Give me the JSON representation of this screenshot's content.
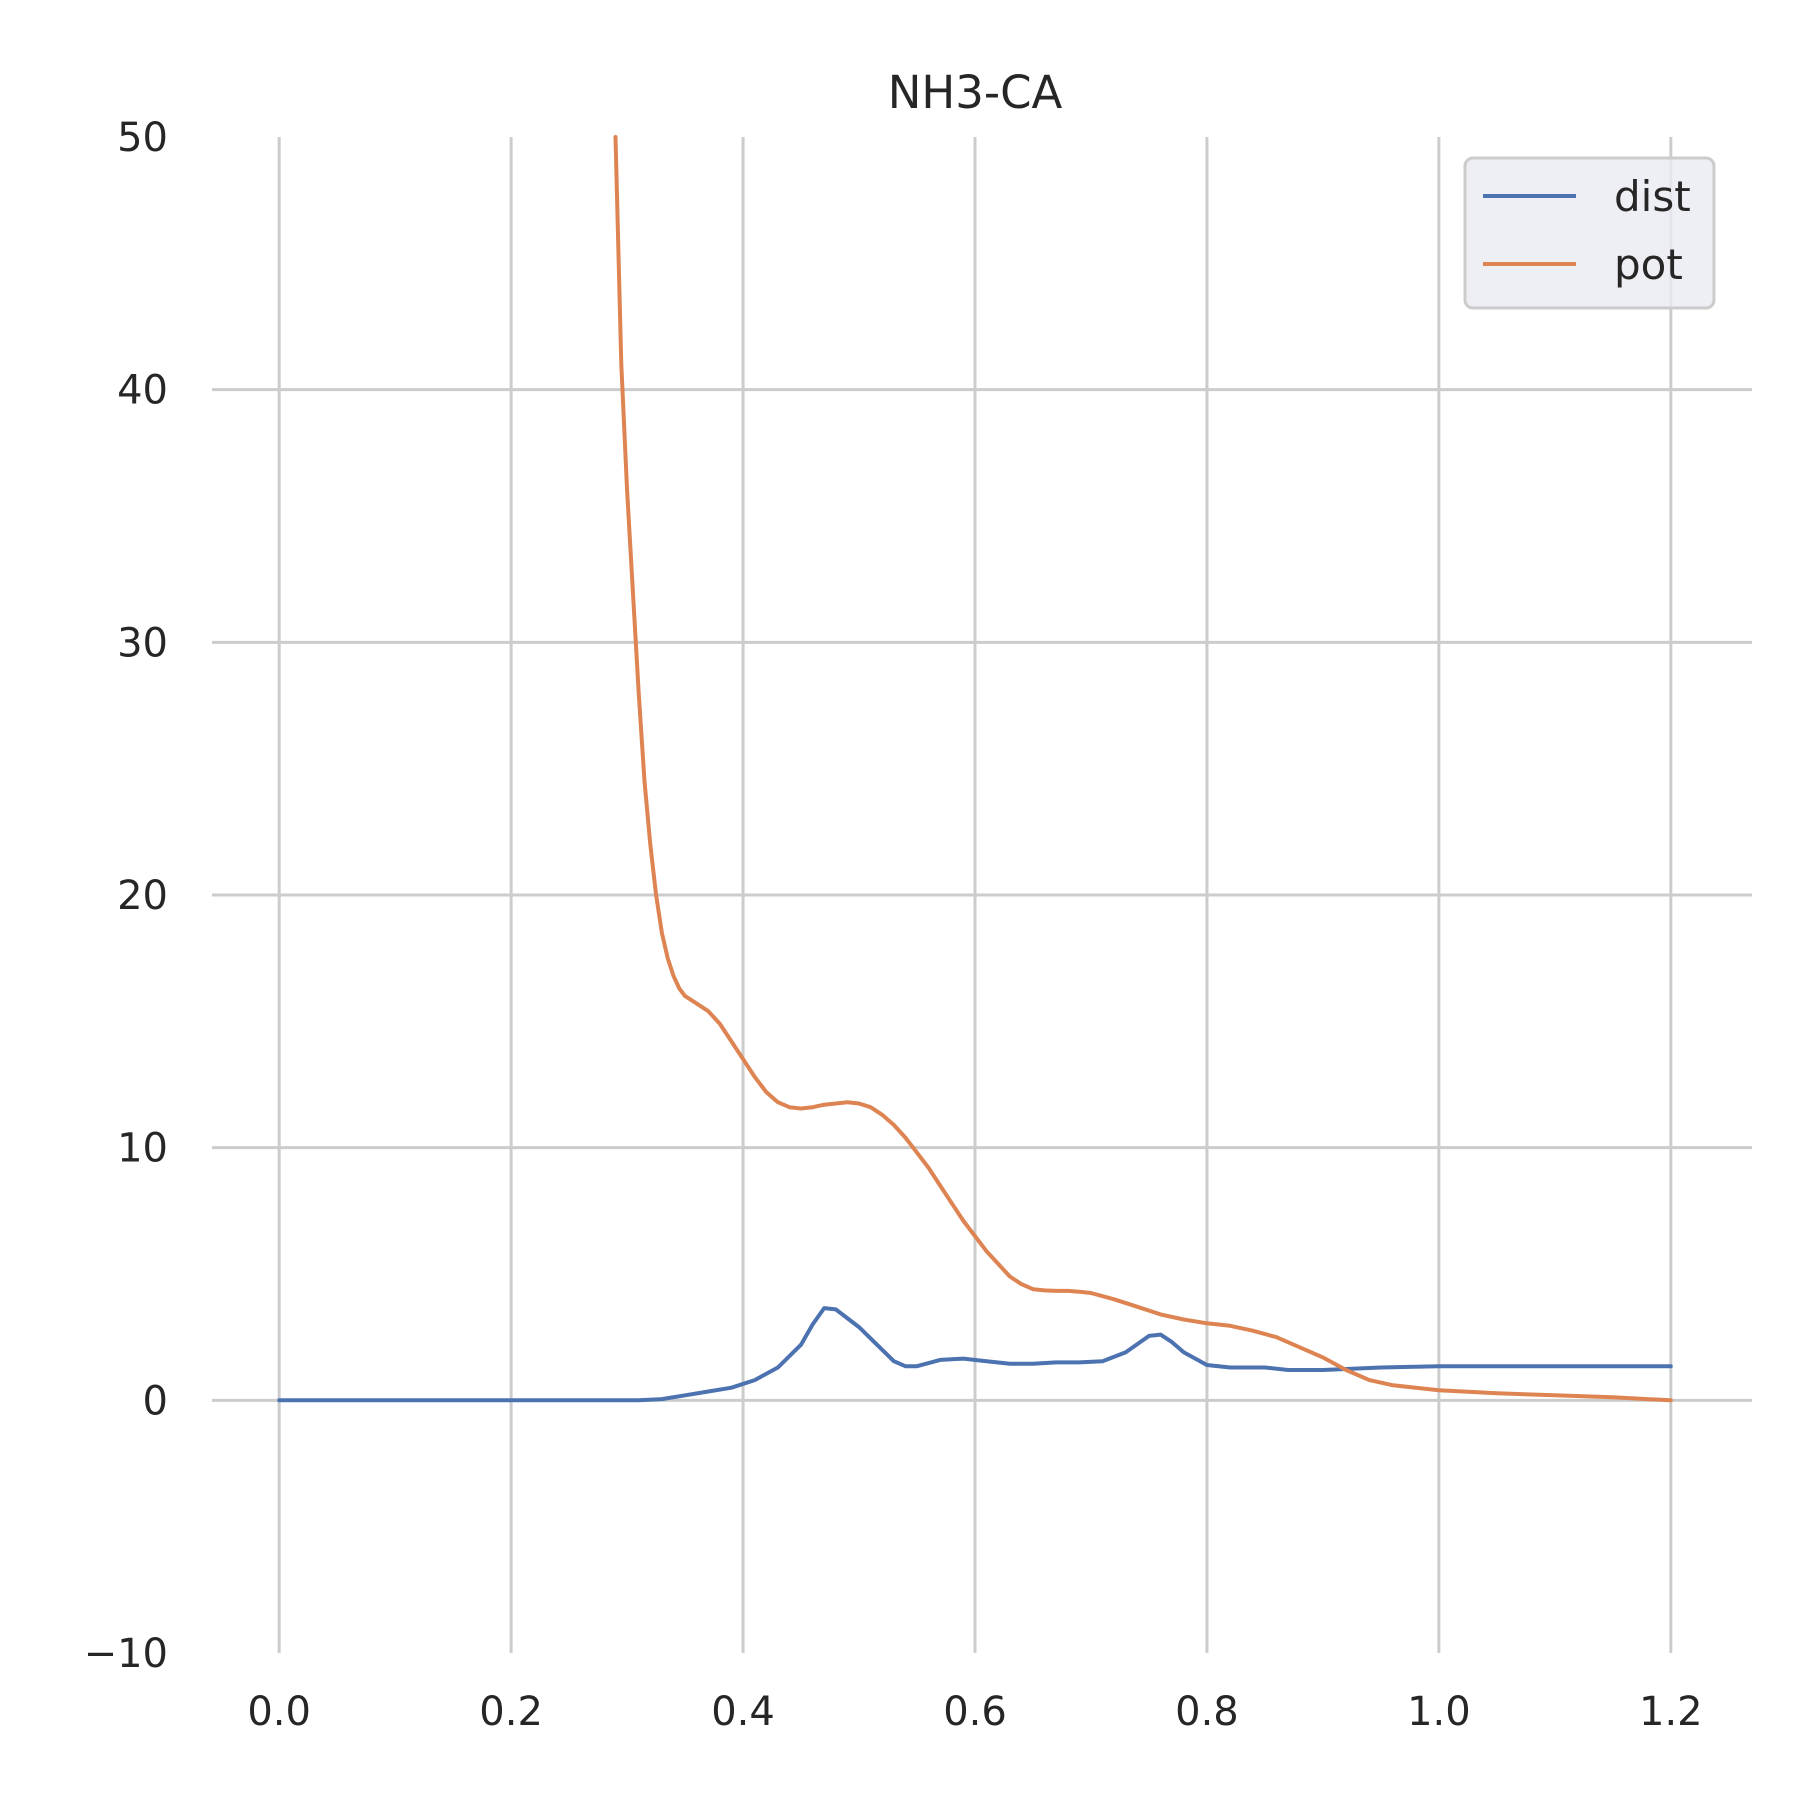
{
  "chart_data": {
    "type": "line",
    "title": "NH3-CA",
    "xlabel": "",
    "ylabel": "",
    "xlim": [
      -0.07,
      1.27
    ],
    "ylim": [
      -10,
      50
    ],
    "grid": true,
    "legend": "top-right",
    "xticks": [
      {
        "value": 0.0,
        "label": "0.0"
      },
      {
        "value": 0.2,
        "label": "0.2"
      },
      {
        "value": 0.4,
        "label": "0.4"
      },
      {
        "value": 0.6,
        "label": "0.6"
      },
      {
        "value": 0.8,
        "label": "0.8"
      },
      {
        "value": 1.0,
        "label": "1.0"
      },
      {
        "value": 1.2,
        "label": "1.2"
      }
    ],
    "yticks": [
      {
        "value": -10,
        "label": "−10"
      },
      {
        "value": 0,
        "label": "0"
      },
      {
        "value": 10,
        "label": "10"
      },
      {
        "value": 20,
        "label": "20"
      },
      {
        "value": 30,
        "label": "30"
      },
      {
        "value": 40,
        "label": "40"
      },
      {
        "value": 50,
        "label": "50"
      }
    ],
    "series": [
      {
        "name": "dist",
        "color": "#4c72b0",
        "x": [
          0.0,
          0.1,
          0.2,
          0.3,
          0.31,
          0.33,
          0.35,
          0.37,
          0.39,
          0.41,
          0.43,
          0.45,
          0.46,
          0.47,
          0.48,
          0.5,
          0.52,
          0.53,
          0.54,
          0.55,
          0.57,
          0.59,
          0.61,
          0.63,
          0.65,
          0.67,
          0.69,
          0.71,
          0.73,
          0.75,
          0.76,
          0.77,
          0.78,
          0.8,
          0.82,
          0.85,
          0.87,
          0.9,
          0.95,
          1.0,
          1.05,
          1.1,
          1.15,
          1.2
        ],
        "y": [
          0.0,
          0.0,
          0.0,
          0.0,
          0.0,
          0.05,
          0.2,
          0.35,
          0.5,
          0.8,
          1.3,
          2.2,
          3.0,
          3.65,
          3.6,
          2.9,
          2.0,
          1.55,
          1.35,
          1.35,
          1.6,
          1.65,
          1.55,
          1.45,
          1.45,
          1.5,
          1.5,
          1.55,
          1.9,
          2.55,
          2.6,
          2.3,
          1.9,
          1.4,
          1.3,
          1.3,
          1.2,
          1.2,
          1.3,
          1.35,
          1.35,
          1.35,
          1.35,
          1.35
        ]
      },
      {
        "name": "pot",
        "color": "#dd8452",
        "x": [
          0.29,
          0.295,
          0.3,
          0.305,
          0.31,
          0.315,
          0.32,
          0.325,
          0.33,
          0.335,
          0.34,
          0.345,
          0.35,
          0.36,
          0.37,
          0.38,
          0.39,
          0.4,
          0.41,
          0.42,
          0.43,
          0.44,
          0.45,
          0.46,
          0.47,
          0.48,
          0.49,
          0.5,
          0.51,
          0.52,
          0.53,
          0.54,
          0.55,
          0.56,
          0.57,
          0.58,
          0.59,
          0.6,
          0.61,
          0.62,
          0.63,
          0.64,
          0.65,
          0.66,
          0.67,
          0.68,
          0.69,
          0.7,
          0.72,
          0.74,
          0.76,
          0.78,
          0.8,
          0.82,
          0.84,
          0.86,
          0.88,
          0.9,
          0.92,
          0.94,
          0.96,
          0.98,
          1.0,
          1.05,
          1.1,
          1.15,
          1.2
        ],
        "y": [
          50,
          41,
          36,
          32,
          28,
          24.5,
          22,
          20,
          18.5,
          17.5,
          16.8,
          16.3,
          16.0,
          15.7,
          15.4,
          14.9,
          14.2,
          13.5,
          12.8,
          12.2,
          11.8,
          11.6,
          11.55,
          11.6,
          11.7,
          11.75,
          11.8,
          11.75,
          11.6,
          11.3,
          10.9,
          10.4,
          9.8,
          9.2,
          8.5,
          7.8,
          7.1,
          6.5,
          5.9,
          5.4,
          4.9,
          4.6,
          4.4,
          4.35,
          4.33,
          4.33,
          4.3,
          4.25,
          4.0,
          3.7,
          3.4,
          3.2,
          3.05,
          2.95,
          2.75,
          2.5,
          2.1,
          1.7,
          1.2,
          0.8,
          0.6,
          0.5,
          0.4,
          0.28,
          0.2,
          0.12,
          0.0
        ]
      }
    ]
  }
}
